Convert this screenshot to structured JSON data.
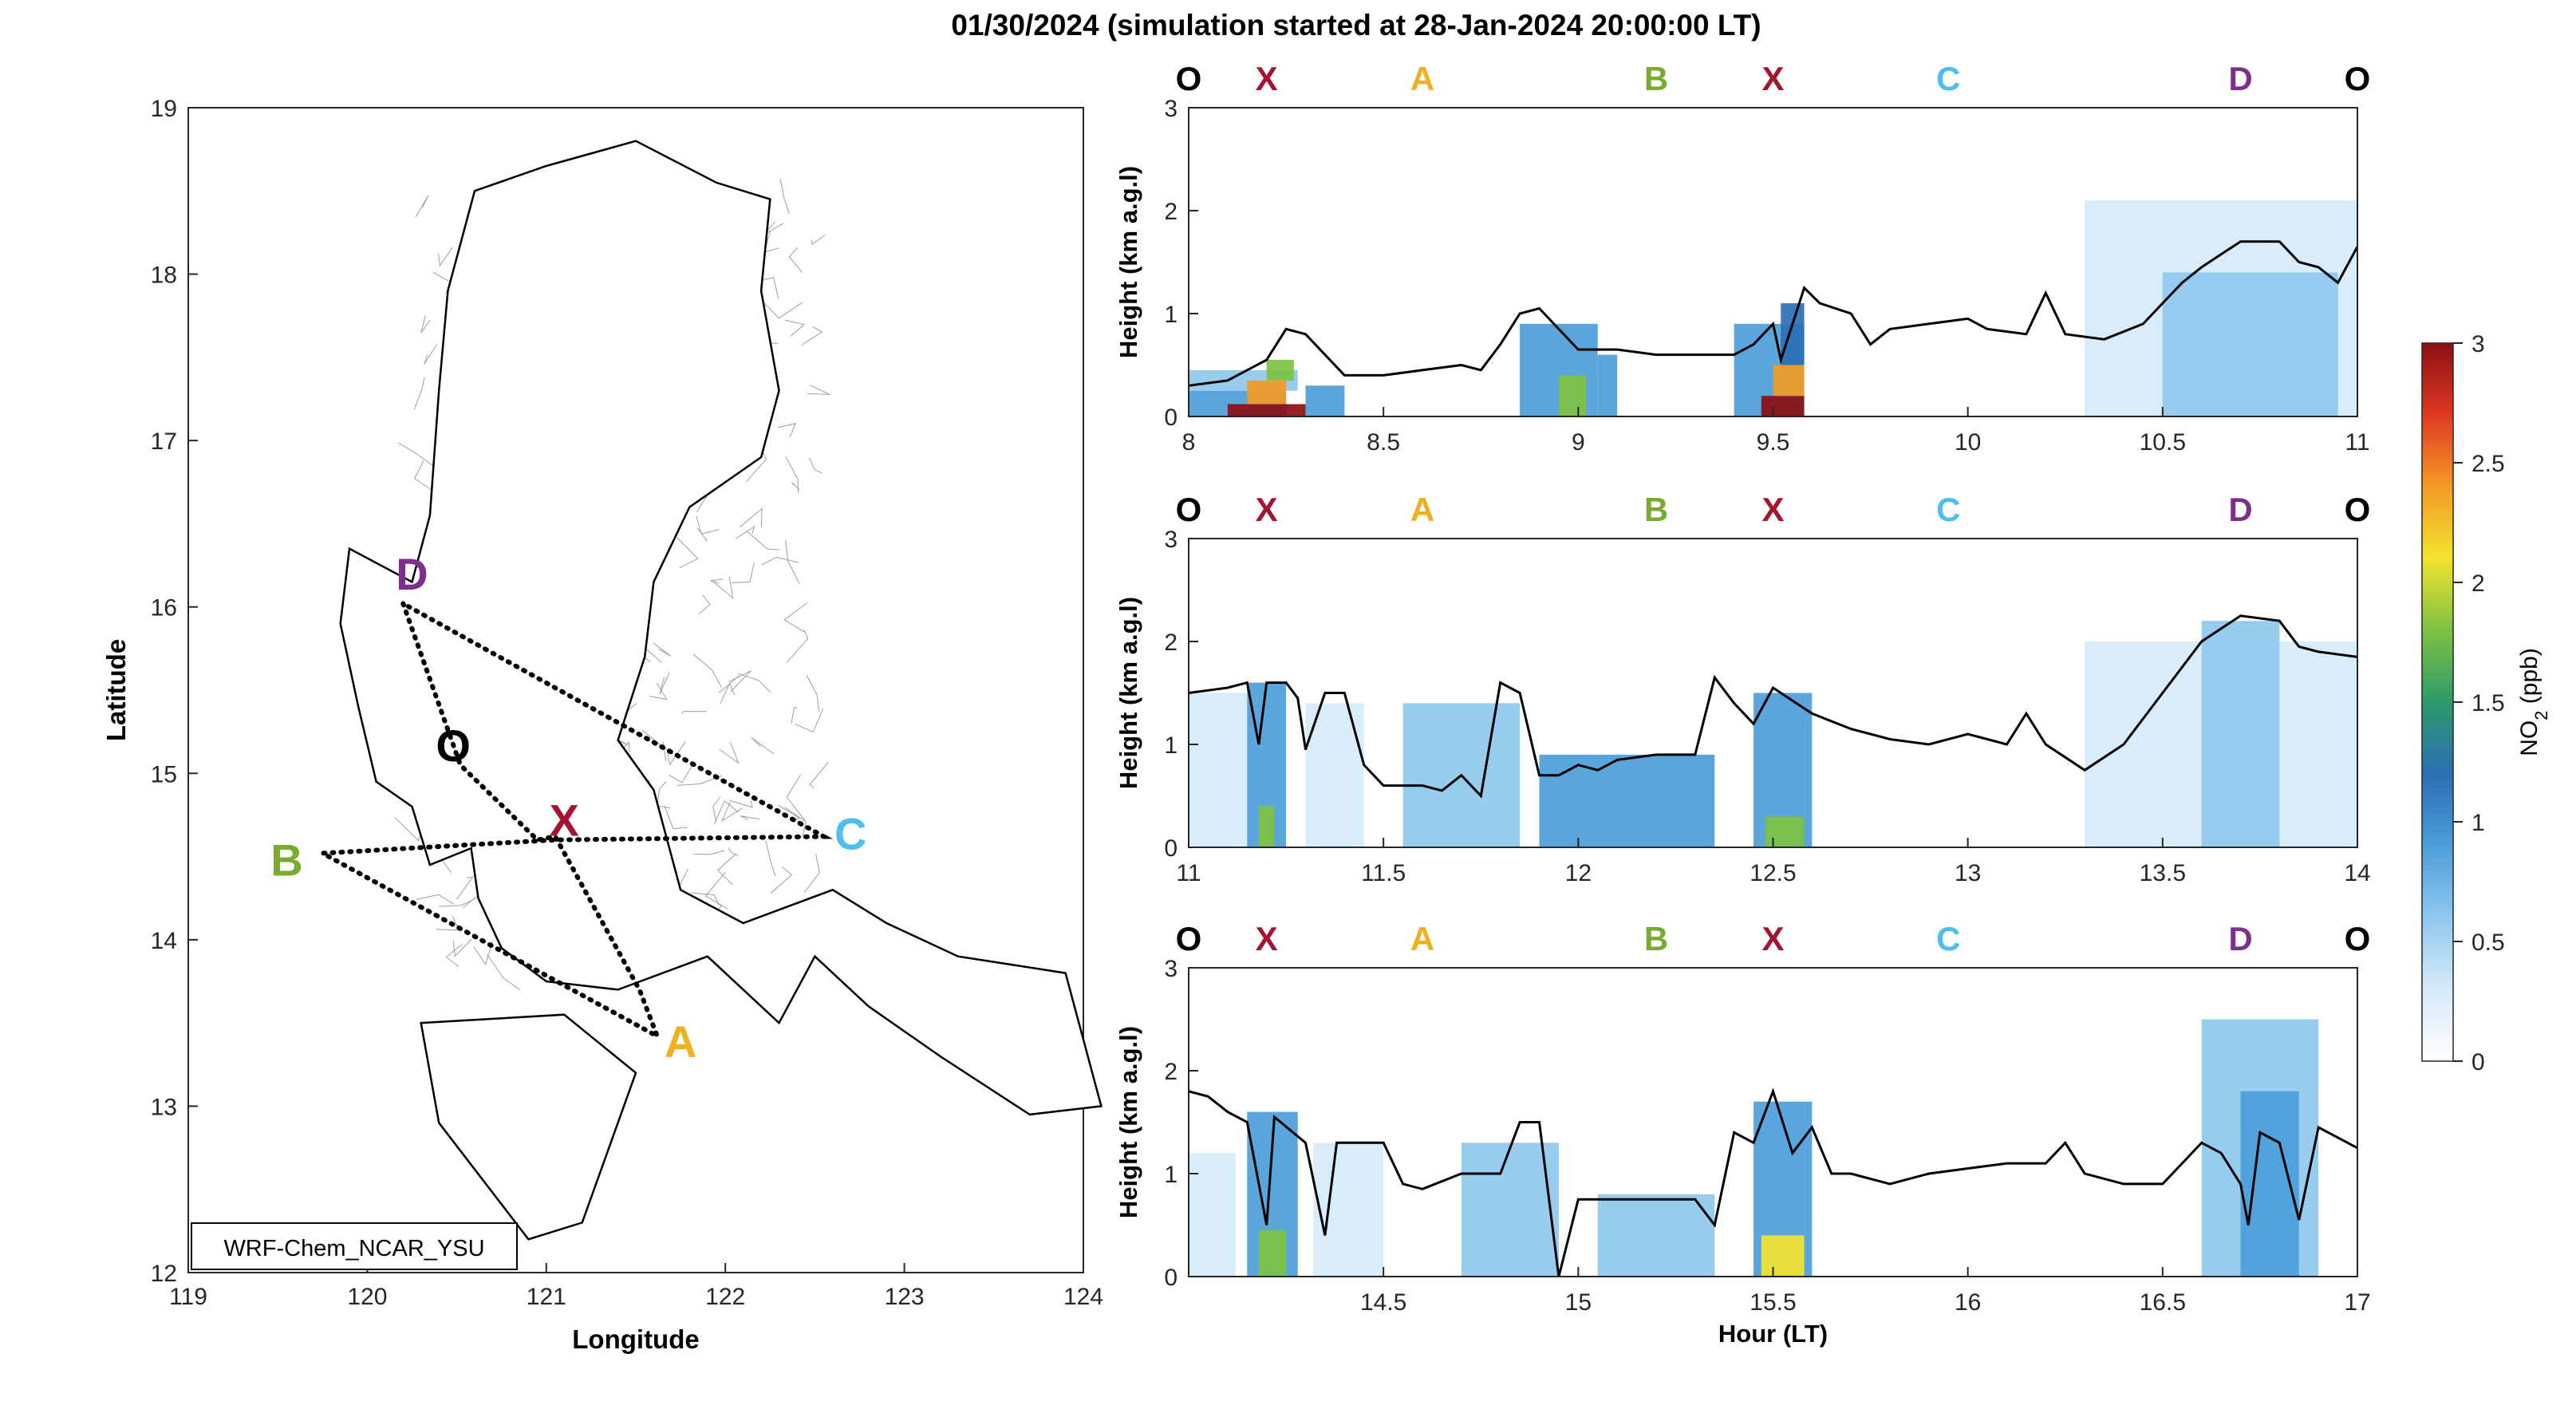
{
  "title": "01/30/2024 (simulation started at 28-Jan-2024 20:00:00 LT)",
  "colors": {
    "O": "#000000",
    "X": "#a2142f",
    "A": "#edb120",
    "B": "#77ac30",
    "C": "#4dbeee",
    "D": "#7e2f8e",
    "path": "#000000",
    "pbl_line": "#000000",
    "land_outline": "#000000",
    "admin_lines": "#9e9e9e"
  },
  "colormap": [
    "#ffffff",
    "#d6eaf8",
    "#8fc8ee",
    "#4c9ed9",
    "#2b6fb4",
    "#2d9a6a",
    "#7dc242",
    "#f2e42f",
    "#f39a25",
    "#e03a22",
    "#8b0f12"
  ],
  "chart_data": [
    {
      "type": "map",
      "xlabel": "Longitude",
      "ylabel": "Latitude",
      "xlim": [
        119,
        124
      ],
      "ylim": [
        12,
        19
      ],
      "xticks": [
        "119",
        "120",
        "121",
        "122",
        "123",
        "124"
      ],
      "yticks": [
        "12",
        "13",
        "14",
        "15",
        "16",
        "17",
        "18",
        "19"
      ],
      "model_label": "WRF-Chem_NCAR_YSU",
      "sites": [
        {
          "label": "D",
          "lon": 120.25,
          "lat": 16.2,
          "key": "D"
        },
        {
          "label": "O",
          "lon": 120.48,
          "lat": 15.17,
          "key": "O"
        },
        {
          "label": "X",
          "lon": 121.1,
          "lat": 14.72,
          "key": "X"
        },
        {
          "label": "C",
          "lon": 122.7,
          "lat": 14.64,
          "key": "C"
        },
        {
          "label": "B",
          "lon": 119.55,
          "lat": 14.48,
          "key": "B"
        },
        {
          "label": "A",
          "lon": 121.75,
          "lat": 13.39,
          "key": "A"
        }
      ],
      "flight_path": [
        [
          120.2,
          16.02
        ],
        [
          120.52,
          15.05
        ],
        [
          120.95,
          14.6
        ],
        [
          121.05,
          14.62
        ],
        [
          121.52,
          13.7
        ],
        [
          121.62,
          13.42
        ],
        [
          119.75,
          14.52
        ],
        [
          121.05,
          14.6
        ],
        [
          122.55,
          14.62
        ],
        [
          120.2,
          16.02
        ]
      ]
    },
    {
      "type": "heatmap",
      "ylabel": "Height (km a.g.l)",
      "xlim": [
        8,
        11
      ],
      "ylim": [
        0,
        3
      ],
      "xticks": [
        "8",
        "8.5",
        "9",
        "9.5",
        "10",
        "10.5",
        "11"
      ],
      "yticks": [
        "0",
        "1",
        "2",
        "3"
      ],
      "site_sequence": [
        "O",
        "X",
        "A",
        "B",
        "X",
        "C",
        "D",
        "O"
      ],
      "site_x": [
        8.0,
        8.2,
        8.6,
        9.2,
        9.5,
        9.95,
        10.7,
        11.0
      ],
      "pbl_height": [
        [
          8.0,
          0.3
        ],
        [
          8.1,
          0.35
        ],
        [
          8.15,
          0.45
        ],
        [
          8.2,
          0.55
        ],
        [
          8.25,
          0.85
        ],
        [
          8.3,
          0.8
        ],
        [
          8.35,
          0.6
        ],
        [
          8.4,
          0.4
        ],
        [
          8.5,
          0.4
        ],
        [
          8.6,
          0.45
        ],
        [
          8.7,
          0.5
        ],
        [
          8.75,
          0.45
        ],
        [
          8.8,
          0.7
        ],
        [
          8.85,
          1.0
        ],
        [
          8.9,
          1.05
        ],
        [
          8.95,
          0.85
        ],
        [
          9.0,
          0.65
        ],
        [
          9.1,
          0.65
        ],
        [
          9.2,
          0.6
        ],
        [
          9.3,
          0.6
        ],
        [
          9.4,
          0.6
        ],
        [
          9.45,
          0.7
        ],
        [
          9.5,
          0.9
        ],
        [
          9.52,
          0.55
        ],
        [
          9.58,
          1.25
        ],
        [
          9.62,
          1.1
        ],
        [
          9.7,
          1.0
        ],
        [
          9.75,
          0.7
        ],
        [
          9.8,
          0.85
        ],
        [
          9.9,
          0.9
        ],
        [
          10.0,
          0.95
        ],
        [
          10.05,
          0.85
        ],
        [
          10.15,
          0.8
        ],
        [
          10.2,
          1.2
        ],
        [
          10.25,
          0.8
        ],
        [
          10.35,
          0.75
        ],
        [
          10.45,
          0.9
        ],
        [
          10.55,
          1.3
        ],
        [
          10.6,
          1.45
        ],
        [
          10.7,
          1.7
        ],
        [
          10.8,
          1.7
        ],
        [
          10.85,
          1.5
        ],
        [
          10.9,
          1.45
        ],
        [
          10.95,
          1.3
        ],
        [
          11.0,
          1.65
        ]
      ],
      "concentration_cells": [
        [
          8.0,
          8.25,
          0,
          0.25,
          3
        ],
        [
          8.0,
          8.28,
          0.25,
          0.45,
          2
        ],
        [
          8.1,
          8.3,
          0,
          0.12,
          10
        ],
        [
          8.15,
          8.25,
          0.12,
          0.35,
          8
        ],
        [
          8.2,
          8.27,
          0.35,
          0.55,
          6
        ],
        [
          8.3,
          8.4,
          0,
          0.3,
          3
        ],
        [
          8.85,
          9.05,
          0,
          0.9,
          3
        ],
        [
          8.95,
          9.02,
          0,
          0.4,
          6
        ],
        [
          9.05,
          9.1,
          0,
          0.6,
          3
        ],
        [
          9.4,
          9.58,
          0,
          0.9,
          3
        ],
        [
          9.47,
          9.58,
          0,
          0.2,
          10
        ],
        [
          9.5,
          9.58,
          0.2,
          0.5,
          8
        ],
        [
          9.52,
          9.58,
          0.5,
          1.1,
          4
        ],
        [
          10.3,
          11.0,
          0,
          2.1,
          1
        ],
        [
          10.5,
          10.95,
          0,
          1.4,
          2
        ]
      ]
    },
    {
      "type": "heatmap",
      "ylabel": "Height (km a.g.l)",
      "xlim": [
        11,
        14
      ],
      "ylim": [
        0,
        3
      ],
      "xticks": [
        "11",
        "11.5",
        "12",
        "12.5",
        "13",
        "13.5",
        "14"
      ],
      "yticks": [
        "0",
        "1",
        "2",
        "3"
      ],
      "site_sequence": [
        "O",
        "X",
        "A",
        "B",
        "X",
        "C",
        "D",
        "O"
      ],
      "site_x": [
        11.0,
        11.2,
        11.6,
        12.2,
        12.5,
        12.95,
        13.7,
        14.0
      ],
      "pbl_height": [
        [
          11.0,
          1.5
        ],
        [
          11.1,
          1.55
        ],
        [
          11.15,
          1.6
        ],
        [
          11.18,
          1.0
        ],
        [
          11.2,
          1.6
        ],
        [
          11.25,
          1.6
        ],
        [
          11.28,
          1.45
        ],
        [
          11.3,
          0.95
        ],
        [
          11.35,
          1.5
        ],
        [
          11.4,
          1.5
        ],
        [
          11.45,
          0.8
        ],
        [
          11.5,
          0.6
        ],
        [
          11.6,
          0.6
        ],
        [
          11.65,
          0.55
        ],
        [
          11.7,
          0.7
        ],
        [
          11.75,
          0.5
        ],
        [
          11.8,
          1.6
        ],
        [
          11.85,
          1.5
        ],
        [
          11.9,
          0.7
        ],
        [
          11.95,
          0.7
        ],
        [
          12.0,
          0.8
        ],
        [
          12.05,
          0.75
        ],
        [
          12.1,
          0.85
        ],
        [
          12.2,
          0.9
        ],
        [
          12.3,
          0.9
        ],
        [
          12.35,
          1.65
        ],
        [
          12.4,
          1.4
        ],
        [
          12.45,
          1.2
        ],
        [
          12.5,
          1.55
        ],
        [
          12.6,
          1.3
        ],
        [
          12.7,
          1.15
        ],
        [
          12.8,
          1.05
        ],
        [
          12.9,
          1.0
        ],
        [
          13.0,
          1.1
        ],
        [
          13.1,
          1.0
        ],
        [
          13.15,
          1.3
        ],
        [
          13.2,
          1.0
        ],
        [
          13.3,
          0.75
        ],
        [
          13.4,
          1.0
        ],
        [
          13.5,
          1.5
        ],
        [
          13.6,
          2.0
        ],
        [
          13.7,
          2.25
        ],
        [
          13.8,
          2.2
        ],
        [
          13.85,
          1.95
        ],
        [
          13.9,
          1.9
        ],
        [
          14.0,
          1.85
        ]
      ],
      "concentration_cells": [
        [
          11.0,
          11.15,
          0,
          1.5,
          1
        ],
        [
          11.15,
          11.25,
          0,
          1.6,
          3
        ],
        [
          11.18,
          11.22,
          0,
          0.4,
          6
        ],
        [
          11.3,
          11.45,
          0,
          1.4,
          1
        ],
        [
          11.55,
          11.85,
          0,
          1.4,
          2
        ],
        [
          11.9,
          12.35,
          0,
          0.9,
          3
        ],
        [
          12.45,
          12.6,
          0,
          1.5,
          3
        ],
        [
          12.48,
          12.58,
          0,
          0.3,
          6
        ],
        [
          13.3,
          14.0,
          0,
          2.0,
          1
        ],
        [
          13.6,
          13.8,
          0,
          2.2,
          2
        ]
      ]
    },
    {
      "type": "heatmap",
      "ylabel": "Height (km a.g.l)",
      "xlabel": "Hour (LT)",
      "xlim": [
        14,
        17
      ],
      "ylim": [
        0,
        3
      ],
      "xticks": [
        "14.5",
        "15",
        "15.5",
        "16",
        "16.5",
        "17"
      ],
      "yticks": [
        "0",
        "1",
        "2",
        "3"
      ],
      "site_sequence": [
        "O",
        "X",
        "A",
        "B",
        "X",
        "C",
        "D",
        "O"
      ],
      "site_x": [
        14.0,
        14.2,
        14.6,
        15.2,
        15.5,
        15.95,
        16.7,
        17.0
      ],
      "pbl_height": [
        [
          14.0,
          1.8
        ],
        [
          14.05,
          1.75
        ],
        [
          14.1,
          1.6
        ],
        [
          14.15,
          1.5
        ],
        [
          14.2,
          0.5
        ],
        [
          14.22,
          1.55
        ],
        [
          14.3,
          1.3
        ],
        [
          14.35,
          0.4
        ],
        [
          14.38,
          1.3
        ],
        [
          14.5,
          1.3
        ],
        [
          14.55,
          0.9
        ],
        [
          14.6,
          0.85
        ],
        [
          14.7,
          1.0
        ],
        [
          14.8,
          1.0
        ],
        [
          14.85,
          1.5
        ],
        [
          14.9,
          1.5
        ],
        [
          14.95,
          0.0
        ],
        [
          15.0,
          0.75
        ],
        [
          15.1,
          0.75
        ],
        [
          15.2,
          0.75
        ],
        [
          15.3,
          0.75
        ],
        [
          15.35,
          0.5
        ],
        [
          15.4,
          1.4
        ],
        [
          15.45,
          1.3
        ],
        [
          15.5,
          1.8
        ],
        [
          15.55,
          1.2
        ],
        [
          15.6,
          1.45
        ],
        [
          15.65,
          1.0
        ],
        [
          15.7,
          1.0
        ],
        [
          15.8,
          0.9
        ],
        [
          15.9,
          1.0
        ],
        [
          16.0,
          1.05
        ],
        [
          16.1,
          1.1
        ],
        [
          16.2,
          1.1
        ],
        [
          16.25,
          1.3
        ],
        [
          16.3,
          1.0
        ],
        [
          16.4,
          0.9
        ],
        [
          16.5,
          0.9
        ],
        [
          16.55,
          1.1
        ],
        [
          16.6,
          1.3
        ],
        [
          16.65,
          1.2
        ],
        [
          16.7,
          0.9
        ],
        [
          16.72,
          0.5
        ],
        [
          16.75,
          1.4
        ],
        [
          16.8,
          1.3
        ],
        [
          16.85,
          0.55
        ],
        [
          16.9,
          1.45
        ],
        [
          17.0,
          1.25
        ]
      ],
      "concentration_cells": [
        [
          14.0,
          14.12,
          0,
          1.2,
          1
        ],
        [
          14.15,
          14.28,
          0,
          1.6,
          3
        ],
        [
          14.18,
          14.25,
          0,
          0.45,
          6
        ],
        [
          14.32,
          14.5,
          0,
          1.3,
          1
        ],
        [
          14.7,
          14.95,
          0,
          1.3,
          2
        ],
        [
          15.05,
          15.35,
          0,
          0.8,
          2
        ],
        [
          15.45,
          15.6,
          0,
          1.7,
          3
        ],
        [
          15.47,
          15.58,
          0,
          0.4,
          7
        ],
        [
          16.6,
          16.9,
          0,
          2.5,
          2
        ],
        [
          16.7,
          16.85,
          0,
          1.8,
          3
        ]
      ]
    }
  ],
  "colorbar": {
    "label": "NO2 (ppb)",
    "label_main": "NO",
    "label_sub": "2",
    "label_unit": "(ppb)",
    "ticks": [
      "0",
      "0.5",
      "1",
      "1.5",
      "2",
      "2.5",
      "3"
    ],
    "min": 0,
    "max": 3
  }
}
